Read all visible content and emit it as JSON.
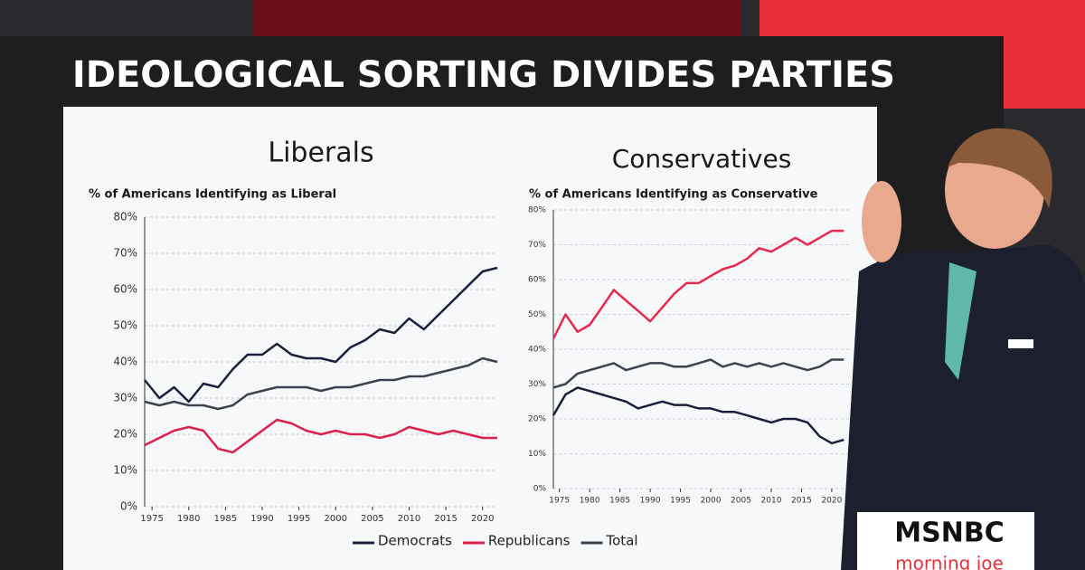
{
  "header": {
    "title": "IDEOLOGICAL SORTING DIVIDES PARTIES"
  },
  "logo": {
    "network": "MSNBC",
    "show": "morning joe"
  },
  "chart_data": [
    {
      "type": "line",
      "title": "Liberals",
      "subtitle": "% of Americans Identifying as Liberal",
      "x": [
        1974,
        1976,
        1978,
        1980,
        1982,
        1984,
        1986,
        1988,
        1990,
        1992,
        1994,
        1996,
        1998,
        2000,
        2002,
        2004,
        2006,
        2008,
        2010,
        2012,
        2014,
        2016,
        2018,
        2020,
        2022
      ],
      "xlim": [
        1974,
        2022
      ],
      "xticks": [
        1975,
        1980,
        1985,
        1990,
        1995,
        2000,
        2005,
        2010,
        2015,
        2020
      ],
      "ylim": [
        0,
        80
      ],
      "yticks": [
        {
          "value": 0,
          "label": "0%"
        },
        {
          "value": 10,
          "label": "10%"
        },
        {
          "value": 20,
          "label": "20%"
        },
        {
          "value": 30,
          "label": "30%"
        },
        {
          "value": 40,
          "label": "40%"
        },
        {
          "value": 50,
          "label": "50%"
        },
        {
          "value": 60,
          "label": "60%"
        },
        {
          "value": 70,
          "label": "70%"
        },
        {
          "value": 80,
          "label": "80%"
        }
      ],
      "grid": true,
      "legend": "bottom",
      "series": [
        {
          "name": "Democrats",
          "color": "#1a1f3d",
          "values": [
            35,
            30,
            33,
            29,
            34,
            33,
            38,
            42,
            42,
            45,
            42,
            41,
            41,
            40,
            44,
            46,
            49,
            48,
            52,
            49,
            53,
            57,
            61,
            65,
            66
          ]
        },
        {
          "name": "Republicans",
          "color": "#d9214e",
          "values": [
            17,
            19,
            21,
            22,
            21,
            16,
            15,
            18,
            21,
            24,
            23,
            21,
            20,
            21,
            20,
            20,
            19,
            20,
            22,
            21,
            20,
            21,
            20,
            19,
            19
          ]
        },
        {
          "name": "Total",
          "color": "#3c4250",
          "values": [
            29,
            28,
            29,
            28,
            28,
            27,
            28,
            31,
            32,
            33,
            33,
            33,
            32,
            33,
            33,
            34,
            35,
            35,
            36,
            36,
            37,
            38,
            39,
            41,
            40
          ]
        }
      ]
    },
    {
      "type": "line",
      "title": "Conservatives",
      "subtitle": "% of Americans Identifying as Conservative",
      "x": [
        1974,
        1976,
        1978,
        1980,
        1982,
        1984,
        1986,
        1988,
        1990,
        1992,
        1994,
        1996,
        1998,
        2000,
        2002,
        2004,
        2006,
        2008,
        2010,
        2012,
        2014,
        2016,
        2018,
        2020,
        2022
      ],
      "xlim": [
        1974,
        2023
      ],
      "xticks": [
        1975,
        1980,
        1985,
        1990,
        1995,
        2000,
        2005,
        2010,
        2015,
        2020
      ],
      "ylim": [
        0,
        80
      ],
      "yticks": [
        {
          "value": 0,
          "label": "0%"
        },
        {
          "value": 10,
          "label": "10%"
        },
        {
          "value": 20,
          "label": "20%"
        },
        {
          "value": 30,
          "label": "30%"
        },
        {
          "value": 40,
          "label": "40%"
        },
        {
          "value": 50,
          "label": "50%"
        },
        {
          "value": 60,
          "label": "60%"
        },
        {
          "value": 70,
          "label": "70%"
        },
        {
          "value": 80,
          "label": "80%"
        }
      ],
      "grid": true,
      "series": [
        {
          "color": "#e8284f",
          "values": [
            43,
            50,
            45,
            47,
            52,
            57,
            54,
            51,
            48,
            52,
            56,
            59,
            59,
            61,
            63,
            64,
            66,
            69,
            68,
            70,
            72,
            70,
            72,
            74,
            74
          ]
        },
        {
          "color": "#3c4250",
          "values": [
            29,
            30,
            33,
            34,
            35,
            36,
            34,
            35,
            36,
            36,
            35,
            35,
            36,
            37,
            35,
            36,
            35,
            36,
            35,
            36,
            35,
            34,
            35,
            37,
            37
          ]
        },
        {
          "color": "#1a1f3d",
          "values": [
            21,
            27,
            29,
            28,
            27,
            26,
            25,
            23,
            24,
            25,
            24,
            24,
            23,
            23,
            22,
            22,
            21,
            20,
            19,
            20,
            20,
            19,
            15,
            13,
            14
          ]
        }
      ]
    }
  ]
}
